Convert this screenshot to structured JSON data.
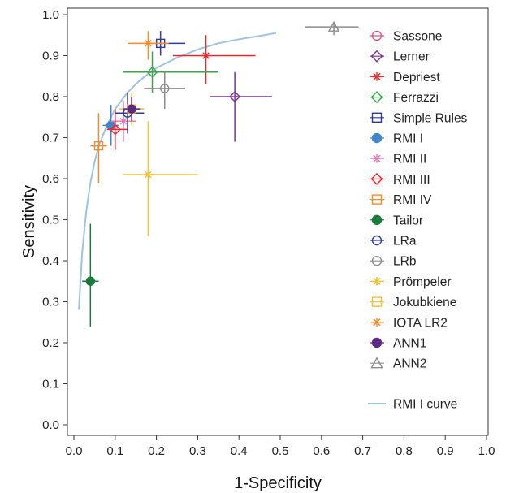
{
  "chart_data": {
    "type": "scatter",
    "title": "",
    "xlabel": "1-Specificity",
    "ylabel": "Sensitivity",
    "xlim": [
      0,
      1
    ],
    "ylim": [
      0,
      1
    ],
    "x_ticks": [
      "0.0",
      "0.1",
      "0.2",
      "0.3",
      "0.4",
      "0.5",
      "0.6",
      "0.7",
      "0.8",
      "0.9",
      "1.0"
    ],
    "y_ticks": [
      "0.0",
      "0.1",
      "0.2",
      "0.3",
      "0.4",
      "0.5",
      "0.6",
      "0.7",
      "0.8",
      "0.9",
      "1.0"
    ],
    "grid": false,
    "legend_position": "right",
    "series": [
      {
        "name": "Sassone",
        "marker": "circle-open",
        "color": "#d6588a",
        "x": 0.14,
        "y": 0.77,
        "x_lo": 0.12,
        "x_hi": 0.16,
        "y_lo": 0.74,
        "y_hi": 0.8
      },
      {
        "name": "Lerner",
        "marker": "diamond-open",
        "color": "#7b3294",
        "x": 0.39,
        "y": 0.8,
        "x_lo": 0.33,
        "x_hi": 0.48,
        "y_lo": 0.69,
        "y_hi": 0.86
      },
      {
        "name": "Depriest",
        "marker": "star",
        "color": "#e8262e",
        "x": 0.32,
        "y": 0.9,
        "x_lo": 0.24,
        "x_hi": 0.44,
        "y_lo": 0.83,
        "y_hi": 0.95
      },
      {
        "name": "Ferrazzi",
        "marker": "diamond-open",
        "color": "#3fa34d",
        "x": 0.19,
        "y": 0.86,
        "x_lo": 0.12,
        "x_hi": 0.35,
        "y_lo": 0.81,
        "y_hi": 0.91
      },
      {
        "name": "Simple Rules",
        "marker": "square-open",
        "color": "#2e3a9e",
        "x": 0.21,
        "y": 0.93,
        "x_lo": 0.17,
        "x_hi": 0.27,
        "y_lo": 0.9,
        "y_hi": 0.96
      },
      {
        "name": "RMI I",
        "marker": "circle-filled",
        "color": "#3f86c8",
        "x": 0.09,
        "y": 0.73,
        "x_lo": 0.07,
        "x_hi": 0.11,
        "y_lo": 0.68,
        "y_hi": 0.78
      },
      {
        "name": "RMI II",
        "marker": "star",
        "color": "#e37bb8",
        "x": 0.12,
        "y": 0.74,
        "x_lo": 0.09,
        "x_hi": 0.15,
        "y_lo": 0.69,
        "y_hi": 0.79
      },
      {
        "name": "RMI III",
        "marker": "diamond-open",
        "color": "#e8262e",
        "x": 0.1,
        "y": 0.72,
        "x_lo": 0.08,
        "x_hi": 0.13,
        "y_lo": 0.67,
        "y_hi": 0.77
      },
      {
        "name": "RMI IV",
        "marker": "square-open",
        "color": "#f28c28",
        "x": 0.06,
        "y": 0.68,
        "x_lo": 0.04,
        "x_hi": 0.08,
        "y_lo": 0.59,
        "y_hi": 0.76
      },
      {
        "name": "Tailor",
        "marker": "circle-filled",
        "color": "#1a7a3c",
        "x": 0.04,
        "y": 0.35,
        "x_lo": 0.02,
        "x_hi": 0.06,
        "y_lo": 0.24,
        "y_hi": 0.49
      },
      {
        "name": "LRa",
        "marker": "circle-open",
        "color": "#2e3a9e",
        "x": 0.13,
        "y": 0.76,
        "x_lo": 0.1,
        "x_hi": 0.17,
        "y_lo": 0.71,
        "y_hi": 0.81
      },
      {
        "name": "LRb",
        "marker": "circle-open",
        "color": "#8c8c8c",
        "x": 0.22,
        "y": 0.82,
        "x_lo": 0.17,
        "x_hi": 0.27,
        "y_lo": 0.77,
        "y_hi": 0.86
      },
      {
        "name": "Prömpeler",
        "marker": "star",
        "color": "#f2c12e",
        "x": 0.18,
        "y": 0.61,
        "x_lo": 0.12,
        "x_hi": 0.3,
        "y_lo": 0.46,
        "y_hi": 0.74
      },
      {
        "name": "Jokubkiene",
        "marker": "square-open",
        "color": "#f2c12e",
        "x": 0.14,
        "y": 0.77,
        "x_lo": 0.11,
        "x_hi": 0.17,
        "y_lo": 0.73,
        "y_hi": 0.81
      },
      {
        "name": "IOTA LR2",
        "marker": "star",
        "color": "#f28c28",
        "x": 0.18,
        "y": 0.93,
        "x_lo": 0.13,
        "x_hi": 0.23,
        "y_lo": 0.89,
        "y_hi": 0.96
      },
      {
        "name": "ANN1",
        "marker": "circle-filled",
        "color": "#5b2a86",
        "x": 0.14,
        "y": 0.77,
        "x_lo": 0.12,
        "x_hi": 0.16,
        "y_lo": 0.74,
        "y_hi": 0.8
      },
      {
        "name": "ANN2",
        "marker": "triangle-open",
        "color": "#8c8c8c",
        "x": 0.63,
        "y": 0.97,
        "x_lo": 0.56,
        "x_hi": 0.69,
        "y_lo": 0.95,
        "y_hi": 0.98
      }
    ],
    "curve": {
      "name": "RMI I curve",
      "color": "#9cc3e6",
      "x": [
        0.012,
        0.02,
        0.03,
        0.04,
        0.05,
        0.06,
        0.08,
        0.1,
        0.13,
        0.16,
        0.2,
        0.25,
        0.3,
        0.35,
        0.4,
        0.45,
        0.49
      ],
      "y": [
        0.28,
        0.42,
        0.52,
        0.59,
        0.64,
        0.68,
        0.73,
        0.77,
        0.81,
        0.84,
        0.87,
        0.895,
        0.915,
        0.93,
        0.94,
        0.948,
        0.955
      ]
    }
  }
}
